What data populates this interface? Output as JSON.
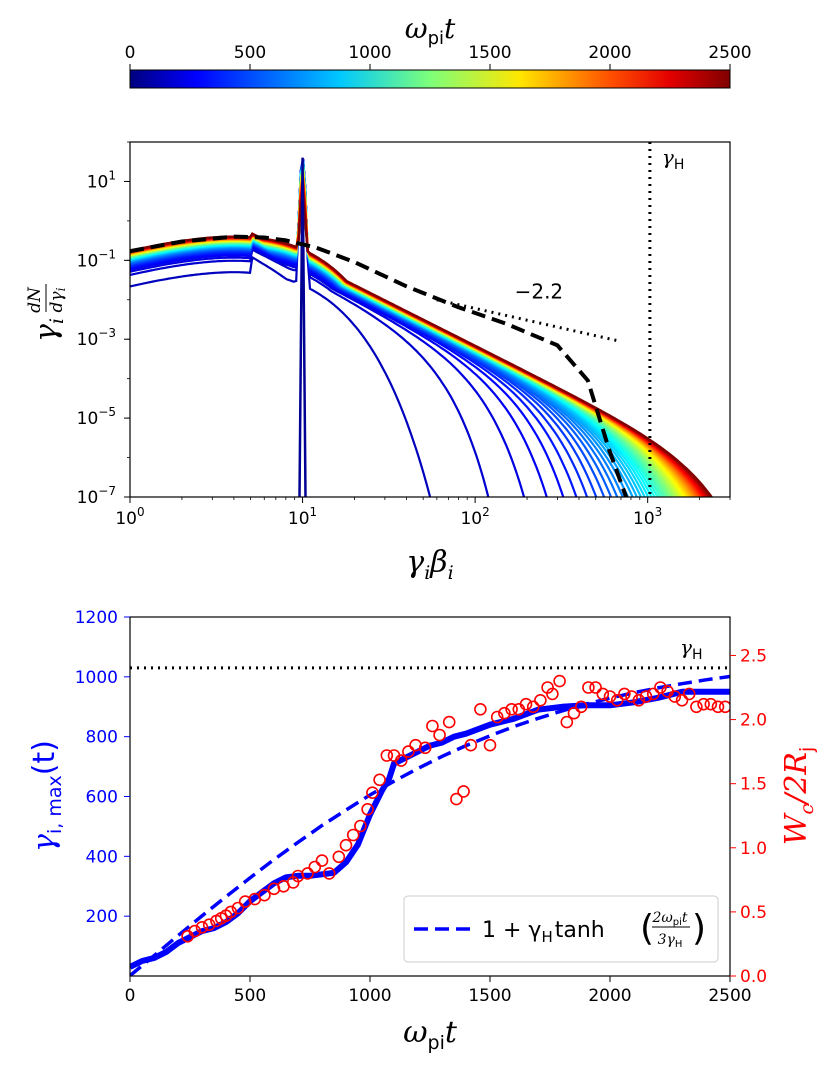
{
  "colorbar": {
    "label_symbol": "ω",
    "label_sub": "pi",
    "label_tail": "t",
    "ticks": [
      "0",
      "500",
      "1000",
      "1500",
      "2000",
      "2500"
    ],
    "tick_values": [
      0,
      500,
      1000,
      1500,
      2000,
      2500
    ],
    "range": [
      0,
      2500
    ],
    "colormap": "jet"
  },
  "chart_data": [
    {
      "type": "line",
      "xlabel_main": "γ",
      "xlabel_sub1": "i",
      "xlabel_mid": "β",
      "xlabel_sub2": "i",
      "ylabel_main": "γ",
      "ylabel_sub": "i",
      "ylabel_frac_num": "dN",
      "ylabel_frac_den": "dγ",
      "ylabel_frac_den_sub": "i",
      "xscale": "log",
      "yscale": "log",
      "xlim": [
        1,
        3000
      ],
      "ylim": [
        1e-07,
        100
      ],
      "x_ticks": [
        {
          "base": "10",
          "exp": "0",
          "value": 1
        },
        {
          "base": "10",
          "exp": "1",
          "value": 10
        },
        {
          "base": "10",
          "exp": "2",
          "value": 100
        },
        {
          "base": "10",
          "exp": "3",
          "value": 1000
        }
      ],
      "y_ticks": [
        {
          "base": "10",
          "exp": "1",
          "value": 10
        },
        {
          "base": "10",
          "exp": "−1",
          "value": 0.1
        },
        {
          "base": "10",
          "exp": "−3",
          "value": 0.001
        },
        {
          "base": "10",
          "exp": "−5",
          "value": 1e-05
        },
        {
          "base": "10",
          "exp": "−7",
          "value": 1e-07
        }
      ],
      "vline": {
        "x": 1030,
        "label_main": "γ",
        "label_sub": "H",
        "style": "dotted"
      },
      "slope_annotation": {
        "text": "−2.2",
        "x": [
          60,
          700
        ],
        "y": [
          0.01,
          0.00088
        ]
      },
      "spectrum_peak": {
        "x": 10,
        "y": 40
      },
      "fit_curve": {
        "style": "dashed",
        "color": "#000000",
        "x": [
          1,
          2,
          4,
          6,
          8,
          12,
          20,
          40,
          80,
          150,
          300,
          450,
          600,
          750
        ],
        "y": [
          0.17,
          0.3,
          0.4,
          0.38,
          0.32,
          0.21,
          0.09,
          0.022,
          0.0065,
          0.0025,
          0.0007,
          9e-05,
          1.5e-06,
          1e-07
        ]
      },
      "series_info": "spectra colored by time from 0 to 2500 (colorbar)"
    },
    {
      "type": "line",
      "xlabel_main": "ω",
      "xlabel_sub": "pi",
      "xlabel_tail": "t",
      "ylabel_left_main": "γ",
      "ylabel_left_sub": "i, max",
      "ylabel_left_tail": "(t)",
      "ylabel_right_main": "W",
      "ylabel_right_sub1": "c",
      "ylabel_right_mid": "/2R",
      "ylabel_right_sub2": "j",
      "xlim": [
        0,
        2500
      ],
      "ylim_left": [
        0,
        1200
      ],
      "ylim_right": [
        0,
        2.8
      ],
      "x_ticks": [
        "0",
        "500",
        "1000",
        "1500",
        "2000",
        "2500"
      ],
      "x_tick_values": [
        0,
        500,
        1000,
        1500,
        2000,
        2500
      ],
      "y_left_ticks": [
        "200",
        "400",
        "600",
        "800",
        "1000",
        "1200"
      ],
      "y_left_tick_values": [
        200,
        400,
        600,
        800,
        1000,
        1200
      ],
      "y_right_ticks": [
        "0.0",
        "0.5",
        "1.0",
        "1.5",
        "2.0",
        "2.5"
      ],
      "y_right_tick_values": [
        0,
        0.5,
        1.0,
        1.5,
        2.0,
        2.5
      ],
      "left_color": "#0000ff",
      "right_color": "#ff0000",
      "hline": {
        "y": 1030,
        "label_main": "γ",
        "label_sub": "H",
        "style": "dotted"
      },
      "legend": {
        "placement": "lower-right",
        "entry_prefix": "1 + γ",
        "entry_sub": "H",
        "entry_func": "tanh",
        "entry_frac_num": "2ω",
        "entry_frac_num_sub": "pi",
        "entry_frac_num_tail": "t",
        "entry_frac_den": "3γ",
        "entry_frac_den_sub": "H"
      },
      "gamma_max": {
        "x": [
          0,
          50,
          100,
          150,
          200,
          250,
          300,
          350,
          400,
          450,
          500,
          550,
          600,
          650,
          700,
          750,
          800,
          850,
          900,
          950,
          1000,
          1050,
          1080,
          1100,
          1150,
          1200,
          1250,
          1300,
          1350,
          1400,
          1500,
          1600,
          1700,
          1800,
          1900,
          2000,
          2100,
          2200,
          2300,
          2400,
          2500
        ],
        "y": [
          30,
          50,
          60,
          80,
          110,
          130,
          150,
          160,
          180,
          210,
          250,
          280,
          310,
          330,
          335,
          335,
          340,
          345,
          380,
          440,
          540,
          620,
          660,
          710,
          730,
          750,
          770,
          780,
          800,
          810,
          840,
          860,
          890,
          900,
          905,
          905,
          915,
          930,
          950,
          950,
          950
        ]
      },
      "model": {
        "x": [
          0,
          100,
          200,
          300,
          400,
          500,
          600,
          700,
          800,
          900,
          1000,
          1100,
          1200,
          1300,
          1400,
          1500,
          1600,
          1700,
          1800,
          1900,
          2000,
          2100,
          2200,
          2300,
          2400,
          2500
        ],
        "y": [
          1,
          68,
          135,
          201,
          265,
          328,
          389,
          447,
          503,
          555,
          605,
          651,
          694,
          734,
          770,
          803,
          834,
          861,
          886,
          909,
          929,
          947,
          963,
          977,
          990,
          1001
        ]
      },
      "wc": {
        "x": [
          240,
          270,
          300,
          330,
          360,
          380,
          400,
          420,
          450,
          480,
          520,
          560,
          600,
          640,
          680,
          700,
          740,
          770,
          800,
          830,
          870,
          900,
          930,
          960,
          990,
          1010,
          1040,
          1070,
          1100,
          1130,
          1160,
          1190,
          1230,
          1260,
          1290,
          1330,
          1360,
          1390,
          1420,
          1460,
          1500,
          1530,
          1560,
          1590,
          1620,
          1650,
          1680,
          1710,
          1740,
          1760,
          1790,
          1820,
          1850,
          1880,
          1910,
          1940,
          1970,
          2000,
          2030,
          2060,
          2090,
          2120,
          2150,
          2180,
          2210,
          2240,
          2270,
          2300,
          2330,
          2360,
          2390,
          2420,
          2450,
          2480
        ],
        "y": [
          0.31,
          0.35,
          0.38,
          0.4,
          0.43,
          0.45,
          0.47,
          0.5,
          0.53,
          0.58,
          0.6,
          0.63,
          0.68,
          0.7,
          0.73,
          0.78,
          0.8,
          0.85,
          0.9,
          0.8,
          0.93,
          1.02,
          1.1,
          1.17,
          1.3,
          1.43,
          1.53,
          1.72,
          1.72,
          1.68,
          1.75,
          1.8,
          1.78,
          1.95,
          1.88,
          1.98,
          1.38,
          1.44,
          1.8,
          2.08,
          1.8,
          2.02,
          2.05,
          2.08,
          2.08,
          2.12,
          2.1,
          2.15,
          2.25,
          2.2,
          2.3,
          1.98,
          2.05,
          2.1,
          2.25,
          2.25,
          2.2,
          2.18,
          2.15,
          2.2,
          2.18,
          2.15,
          2.18,
          2.2,
          2.25,
          2.22,
          2.18,
          2.15,
          2.2,
          2.1,
          2.12,
          2.12,
          2.1,
          2.1
        ]
      }
    }
  ]
}
